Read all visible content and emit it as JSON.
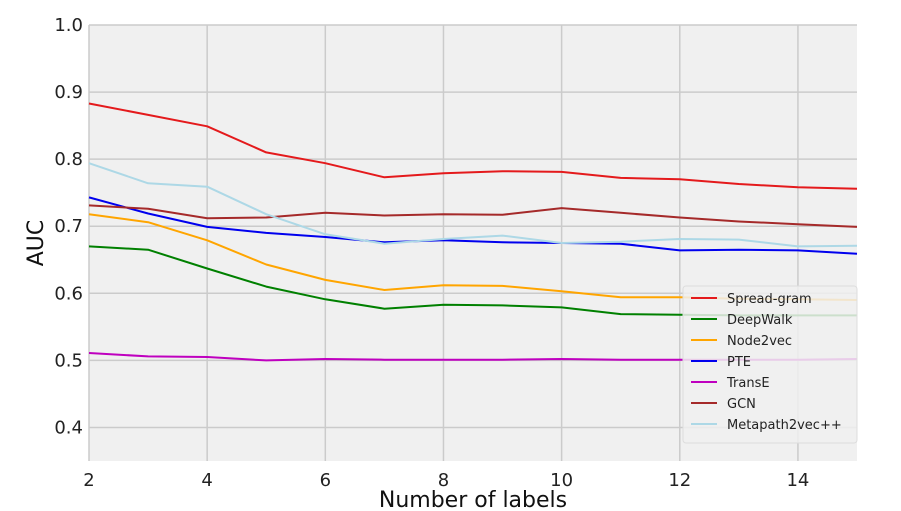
{
  "chart_data": {
    "type": "line",
    "title": "",
    "xlabel": "Number of labels",
    "ylabel": "AUC",
    "xlim": [
      2,
      15
    ],
    "ylim": [
      0.35,
      1.0
    ],
    "x_ticks": [
      2,
      4,
      6,
      8,
      10,
      12,
      14
    ],
    "x_tick_labels": [
      "2",
      "4",
      "6",
      "8",
      "10",
      "12",
      "14"
    ],
    "y_ticks": [
      0.4,
      0.5,
      0.6,
      0.7,
      0.8,
      0.9,
      1.0
    ],
    "y_tick_labels": [
      "0.4",
      "0.5",
      "0.6",
      "0.7",
      "0.8",
      "0.9",
      "1.0"
    ],
    "grid": true,
    "legend_position": "bottom-right",
    "background": "#f0f0f0",
    "x": [
      2,
      3,
      4,
      5,
      6,
      7,
      8,
      9,
      10,
      11,
      12,
      13,
      14,
      15
    ],
    "series": [
      {
        "name": "Spread-gram",
        "color": "#e41a1c",
        "values": [
          0.883,
          0.866,
          0.849,
          0.81,
          0.794,
          0.773,
          0.779,
          0.782,
          0.781,
          0.772,
          0.77,
          0.763,
          0.758,
          0.756
        ]
      },
      {
        "name": "DeepWalk",
        "color": "#008000",
        "values": [
          0.67,
          0.665,
          0.637,
          0.61,
          0.591,
          0.577,
          0.583,
          0.582,
          0.579,
          0.569,
          0.568,
          0.567,
          0.567,
          0.567
        ]
      },
      {
        "name": "Node2vec",
        "color": "#ffa500",
        "values": [
          0.718,
          0.706,
          0.679,
          0.643,
          0.62,
          0.605,
          0.612,
          0.611,
          0.603,
          0.594,
          0.594,
          0.592,
          0.591,
          0.59
        ]
      },
      {
        "name": "PTE",
        "color": "#0000ee",
        "values": [
          0.743,
          0.719,
          0.699,
          0.69,
          0.684,
          0.676,
          0.679,
          0.676,
          0.675,
          0.674,
          0.664,
          0.665,
          0.664,
          0.659
        ]
      },
      {
        "name": "TransE",
        "color": "#bf00bf",
        "values": [
          0.511,
          0.506,
          0.505,
          0.5,
          0.502,
          0.501,
          0.501,
          0.501,
          0.502,
          0.501,
          0.501,
          0.501,
          0.501,
          0.502
        ]
      },
      {
        "name": "GCN",
        "color": "#a52a2a",
        "values": [
          0.731,
          0.726,
          0.712,
          0.713,
          0.72,
          0.716,
          0.718,
          0.717,
          0.727,
          0.72,
          0.713,
          0.707,
          0.703,
          0.699
        ]
      },
      {
        "name": "Metapath2vec++",
        "color": "#add8e6",
        "values": [
          0.794,
          0.764,
          0.759,
          0.718,
          0.688,
          0.674,
          0.681,
          0.686,
          0.675,
          0.677,
          0.681,
          0.68,
          0.67,
          0.671
        ]
      }
    ]
  }
}
